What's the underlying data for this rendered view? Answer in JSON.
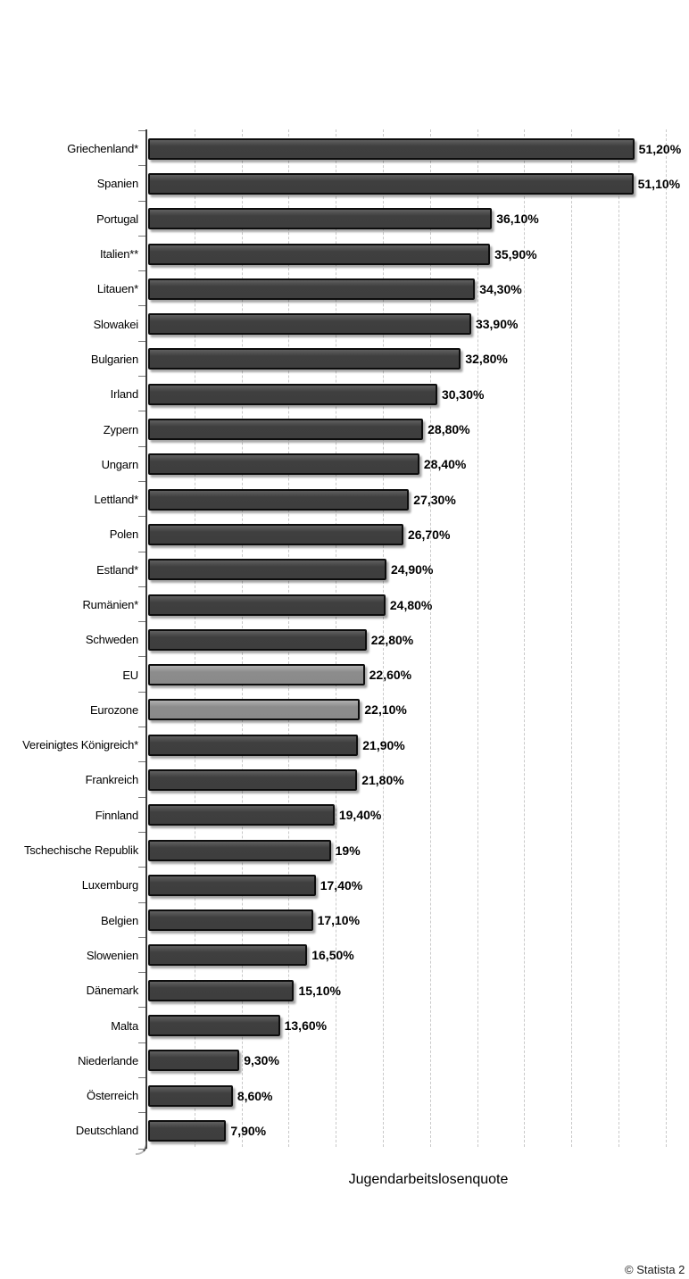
{
  "chart_data": {
    "type": "bar",
    "orientation": "horizontal",
    "title": "",
    "xlabel": "Jugendarbeitslosenquote",
    "ylabel": "",
    "xlim": [
      0,
      57
    ],
    "gridline_step": 5,
    "grid": "vertical-dashed",
    "legend": "none",
    "categories": [
      "Griechenland*",
      "Spanien",
      "Portugal",
      "Italien**",
      "Litauen*",
      "Slowakei",
      "Bulgarien",
      "Irland",
      "Zypern",
      "Ungarn",
      "Lettland*",
      "Polen",
      "Estland*",
      "Rumänien*",
      "Schweden",
      "EU",
      "Eurozone",
      "Vereinigtes Königreich*",
      "Frankreich",
      "Finnland",
      "Tschechische Republik",
      "Luxemburg",
      "Belgien",
      "Slowenien",
      "Dänemark",
      "Malta",
      "Niederlande",
      "Österreich",
      "Deutschland"
    ],
    "values": [
      51.2,
      51.1,
      36.1,
      35.9,
      34.3,
      33.9,
      32.8,
      30.3,
      28.8,
      28.4,
      27.3,
      26.7,
      24.9,
      24.8,
      22.8,
      22.6,
      22.1,
      21.9,
      21.8,
      19.4,
      19.0,
      17.4,
      17.1,
      16.5,
      15.1,
      13.6,
      9.3,
      8.6,
      7.9
    ],
    "value_labels": [
      "51,20%",
      "51,10%",
      "36,10%",
      "35,90%",
      "34,30%",
      "33,90%",
      "32,80%",
      "30,30%",
      "28,80%",
      "28,40%",
      "27,30%",
      "26,70%",
      "24,90%",
      "24,80%",
      "22,80%",
      "22,60%",
      "22,10%",
      "21,90%",
      "21,80%",
      "19,40%",
      "19%",
      "17,40%",
      "17,10%",
      "16,50%",
      "15,10%",
      "13,60%",
      "9,30%",
      "8,60%",
      "7,90%"
    ],
    "highlighted_categories": [
      "EU",
      "Eurozone"
    ],
    "colors": {
      "bar": "#3e3e3e",
      "bar_highlight": "#8c8c8c",
      "bar_border": "#0d0d0d",
      "gridline": "#c9c9c9",
      "axis": "#3a3a3a"
    }
  },
  "footer": {
    "credit": "© Statista 2"
  }
}
